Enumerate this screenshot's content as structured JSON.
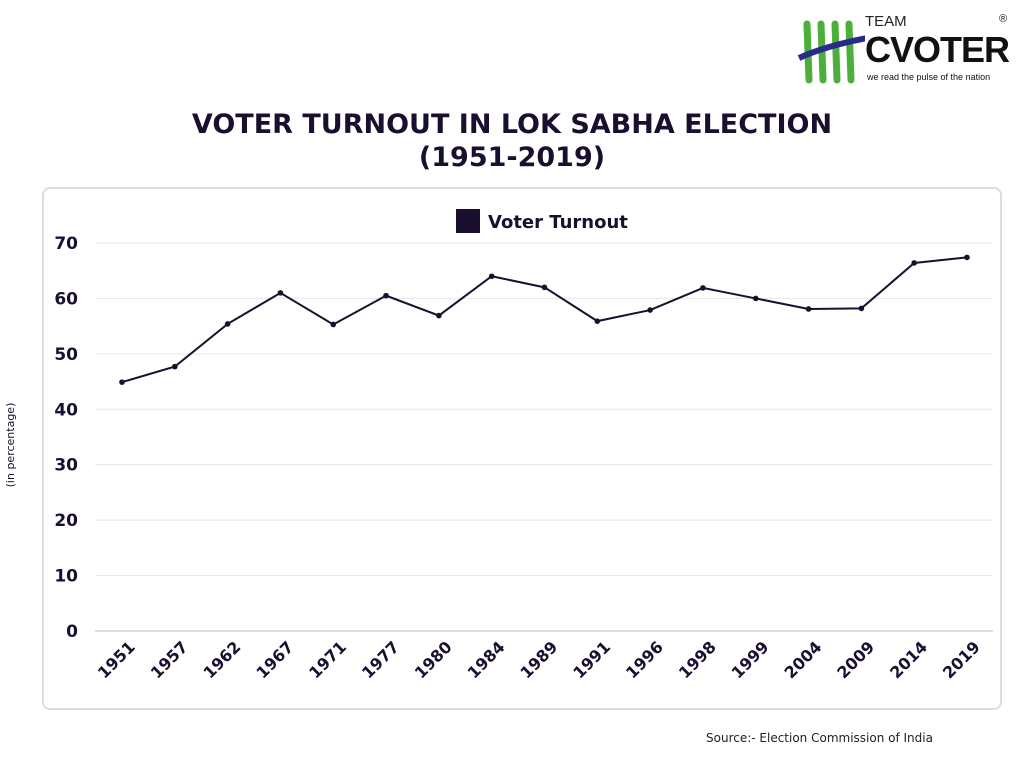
{
  "logo": {
    "team": "TEAM",
    "brand": "CVOTER",
    "registered": "®",
    "tagline": "we read the pulse of the nation"
  },
  "title_line1": "VOTER TURNOUT IN LOK SABHA ELECTION",
  "title_line2": "(1951-2019)",
  "source": "Source:- Election Commission of India",
  "colors": {
    "line": "#1a0f2e",
    "grid": "#e6e6e6",
    "logo_green": "#4caf3a",
    "logo_blue": "#2a2a8c"
  },
  "chart_data": {
    "type": "line",
    "title": "VOTER TURNOUT IN LOK SABHA ELECTION (1951-2019)",
    "xlabel": "",
    "ylabel": "(in percentage)",
    "ylim": [
      0,
      70
    ],
    "yticks": [
      0,
      10,
      20,
      30,
      40,
      50,
      60,
      70
    ],
    "grid": true,
    "legend_position": "top-center",
    "categories": [
      "1951",
      "1957",
      "1962",
      "1967",
      "1971",
      "1977",
      "1980",
      "1984",
      "1989",
      "1991",
      "1996",
      "1998",
      "1999",
      "2004",
      "2009",
      "2014",
      "2019"
    ],
    "series": [
      {
        "name": "Voter Turnout",
        "values": [
          44.9,
          47.7,
          55.4,
          61.0,
          55.3,
          60.5,
          56.9,
          64.0,
          62.0,
          55.9,
          57.9,
          61.9,
          60.0,
          58.1,
          58.2,
          66.4,
          67.4
        ]
      }
    ]
  }
}
